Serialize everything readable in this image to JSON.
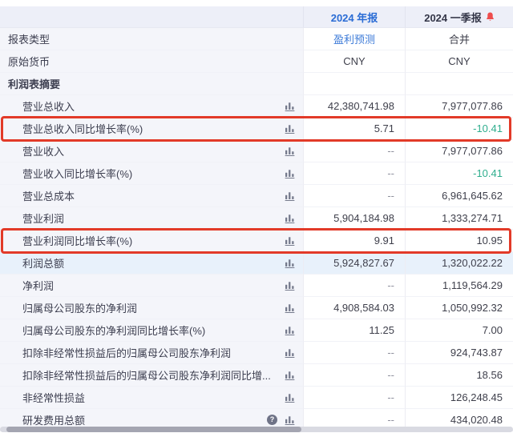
{
  "colors": {
    "header_blue": "#2a6cd5",
    "link_blue": "#3d7bd8",
    "green_down": "#2fae8e",
    "highlight_red": "#e23a28",
    "label_bg": "#f4f5fa",
    "header_bg": "#edeff8",
    "hover_row_bg": "#e8f1fb"
  },
  "icons": {
    "help_glyph": "?"
  },
  "header": {
    "col1": "2024 年报",
    "col2": "2024 一季报"
  },
  "rows": [
    {
      "type": "plain",
      "align": "center",
      "label": "报表类型",
      "values": [
        {
          "text": "盈利预测",
          "color": "blue"
        },
        {
          "text": "合并"
        }
      ]
    },
    {
      "type": "plain",
      "align": "center",
      "label": "原始货币",
      "values": [
        {
          "text": "CNY"
        },
        {
          "text": "CNY"
        }
      ]
    },
    {
      "type": "section",
      "label": "利润表摘要",
      "values": [
        {
          "text": ""
        },
        {
          "text": ""
        }
      ]
    },
    {
      "type": "data",
      "chart": true,
      "label": "营业总收入",
      "values": [
        {
          "text": "42,380,741.98"
        },
        {
          "text": "7,977,077.86"
        }
      ]
    },
    {
      "type": "data",
      "chart": true,
      "highlight": true,
      "label": "营业总收入同比增长率(%)",
      "values": [
        {
          "text": "5.71"
        },
        {
          "text": "-10.41",
          "color": "green"
        }
      ]
    },
    {
      "type": "data",
      "chart": true,
      "label": "营业收入",
      "values": [
        {
          "text": "--",
          "color": "muted"
        },
        {
          "text": "7,977,077.86"
        }
      ]
    },
    {
      "type": "data",
      "chart": true,
      "label": "营业收入同比增长率(%)",
      "values": [
        {
          "text": "--",
          "color": "muted"
        },
        {
          "text": "-10.41",
          "color": "green"
        }
      ]
    },
    {
      "type": "data",
      "chart": true,
      "label": "营业总成本",
      "values": [
        {
          "text": "--",
          "color": "muted"
        },
        {
          "text": "6,961,645.62"
        }
      ]
    },
    {
      "type": "data",
      "chart": true,
      "label": "营业利润",
      "values": [
        {
          "text": "5,904,184.98"
        },
        {
          "text": "1,333,274.71"
        }
      ]
    },
    {
      "type": "data",
      "chart": true,
      "highlight": true,
      "label": "营业利润同比增长率(%)",
      "values": [
        {
          "text": "9.91"
        },
        {
          "text": "10.95"
        }
      ]
    },
    {
      "type": "data",
      "chart": true,
      "hover": true,
      "label": "利润总额",
      "values": [
        {
          "text": "5,924,827.67"
        },
        {
          "text": "1,320,022.22"
        }
      ]
    },
    {
      "type": "data",
      "chart": true,
      "label": "净利润",
      "values": [
        {
          "text": "--",
          "color": "muted"
        },
        {
          "text": "1,119,564.29"
        }
      ]
    },
    {
      "type": "data",
      "chart": true,
      "label": "归属母公司股东的净利润",
      "values": [
        {
          "text": "4,908,584.03"
        },
        {
          "text": "1,050,992.32"
        }
      ]
    },
    {
      "type": "data",
      "chart": true,
      "label": "归属母公司股东的净利润同比增长率(%)",
      "values": [
        {
          "text": "11.25"
        },
        {
          "text": "7.00"
        }
      ]
    },
    {
      "type": "data",
      "chart": true,
      "label": "扣除非经常性损益后的归属母公司股东净利润",
      "values": [
        {
          "text": "--",
          "color": "muted"
        },
        {
          "text": "924,743.87"
        }
      ]
    },
    {
      "type": "data",
      "chart": true,
      "label": "扣除非经常性损益后的归属母公司股东净利润同比增...",
      "values": [
        {
          "text": "--",
          "color": "muted"
        },
        {
          "text": "18.56"
        }
      ]
    },
    {
      "type": "data",
      "chart": true,
      "label": "非经常性损益",
      "values": [
        {
          "text": "--",
          "color": "muted"
        },
        {
          "text": "126,248.45"
        }
      ]
    },
    {
      "type": "data",
      "chart": true,
      "help": true,
      "label": "研发费用总额",
      "values": [
        {
          "text": "--",
          "color": "muted"
        },
        {
          "text": "434,020.48"
        }
      ]
    }
  ]
}
